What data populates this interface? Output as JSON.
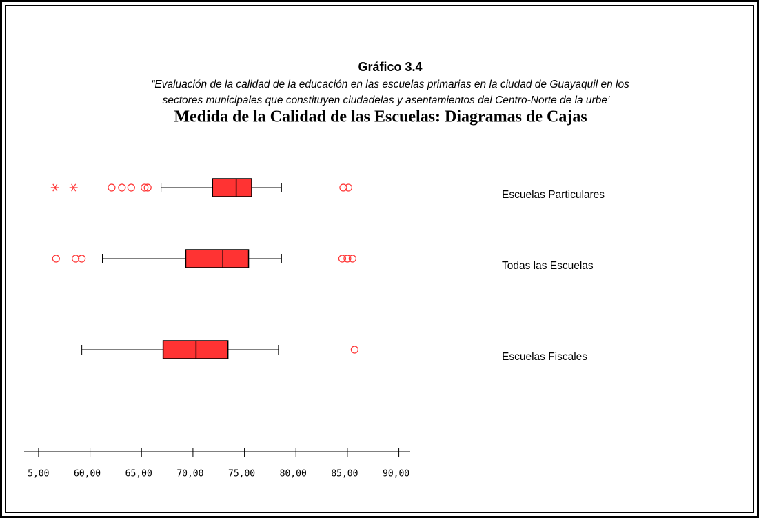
{
  "chart_data": {
    "type": "box",
    "header": "Gráfico 3.4",
    "subtitle": [
      "“Evaluación de la calidad de la educación en las escuelas primarias en la ciudad de Guayaquil en los",
      "sectores municipales que constituyen ciudadelas y asentamientos del Centro-Norte de la urbe’"
    ],
    "title": "Medida de la Calidad de las Escuelas: Diagramas de Cajas",
    "color": "#ff3333",
    "outlier_color": "#ff3333",
    "xlim": [
      53.6,
      91.1
    ],
    "xticks": [
      {
        "value": 55,
        "label": "55,00"
      },
      {
        "value": 60,
        "label": "60,00"
      },
      {
        "value": 65,
        "label": "65,00"
      },
      {
        "value": 70,
        "label": "70,00"
      },
      {
        "value": 75,
        "label": "75,00"
      },
      {
        "value": 80,
        "label": "80,00"
      },
      {
        "value": 85,
        "label": "85,00"
      },
      {
        "value": 90,
        "label": "90,00"
      }
    ],
    "series": [
      {
        "name": "Escuelas Particulares",
        "whisker_low": 66.9,
        "q1": 71.9,
        "median": 74.2,
        "q3": 75.7,
        "whisker_high": 78.6,
        "outliers": [
          62.1,
          63.1,
          64.0,
          65.3,
          65.6,
          84.6,
          85.1
        ],
        "extremes": [
          56.6,
          58.4
        ]
      },
      {
        "name": "Todas las Escuelas",
        "whisker_low": 61.2,
        "q1": 69.3,
        "median": 72.9,
        "q3": 75.4,
        "whisker_high": 78.6,
        "outliers": [
          56.7,
          58.6,
          59.2,
          84.5,
          85.0,
          85.5
        ],
        "extremes": []
      },
      {
        "name": "Escuelas Fiscales",
        "whisker_low": 59.2,
        "q1": 67.1,
        "median": 70.3,
        "q3": 73.4,
        "whisker_high": 78.3,
        "outliers": [
          85.7
        ],
        "extremes": []
      }
    ]
  }
}
